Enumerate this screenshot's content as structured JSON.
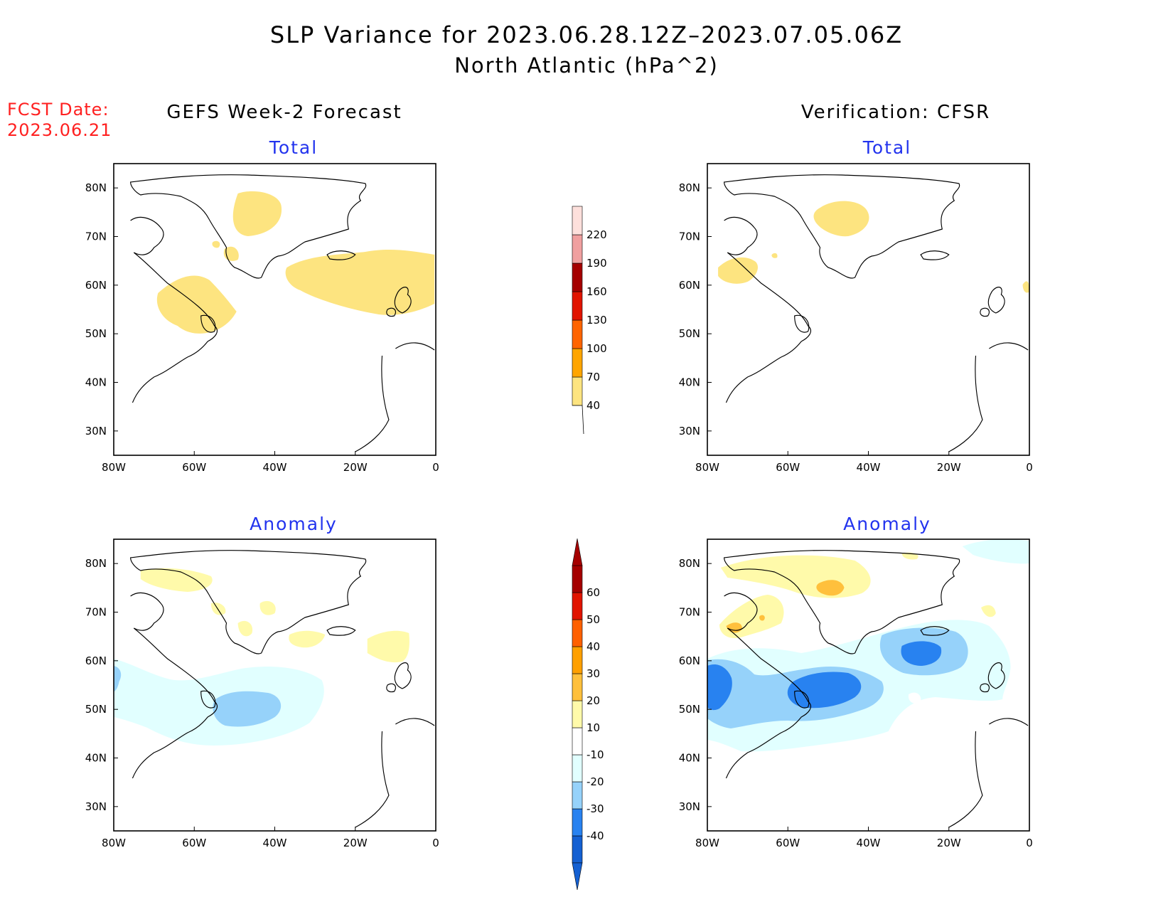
{
  "title": {
    "line1": "SLP Variance for 2023.06.28.12Z–2023.07.05.06Z",
    "line2": "North Atlantic (hPa^2)"
  },
  "forecast_date": {
    "label": "FCST Date:",
    "value": "2023.06.21"
  },
  "columns": {
    "left": "GEFS Week-2 Forecast",
    "right": "Verification: CFSR"
  },
  "panel_titles": {
    "total": "Total",
    "anomaly": "Anomaly"
  },
  "axes": {
    "lat_labels": [
      "80N",
      "70N",
      "60N",
      "50N",
      "40N",
      "30N"
    ],
    "lon_labels": [
      "80W",
      "60W",
      "40W",
      "20W",
      "0"
    ]
  },
  "colorbar_total": {
    "levels": [
      "40",
      "70",
      "100",
      "130",
      "160",
      "190",
      "220"
    ],
    "colors": [
      "#fde480",
      "#ffa500",
      "#ff6400",
      "#e11400",
      "#a50000",
      "#f0a0a0",
      "#fde0dc"
    ]
  },
  "colorbar_anomaly": {
    "levels": [
      "-40",
      "-30",
      "-20",
      "-10",
      "10",
      "20",
      "30",
      "40",
      "50",
      "60"
    ],
    "colors": [
      "#1460d2",
      "#2882f0",
      "#96d2fa",
      "#e1ffff",
      "#ffffff",
      "#fffaaa",
      "#ffc03c",
      "#ffa000",
      "#ff6000",
      "#e11400",
      "#a50000"
    ]
  },
  "chart_data": [
    {
      "type": "map",
      "title": "GEFS Week-2 Forecast — Total",
      "lon_range": [
        -80,
        0
      ],
      "lat_range": [
        25,
        85
      ],
      "features": [
        {
          "region": "central Greenland",
          "level": "40-70"
        },
        {
          "region": "Labrador / Davis Strait",
          "level": "40-70"
        },
        {
          "region": "Iceland to British Isles",
          "level": "40-70"
        }
      ]
    },
    {
      "type": "map",
      "title": "Verification: CFSR — Total",
      "lon_range": [
        -80,
        0
      ],
      "lat_range": [
        25,
        85
      ],
      "features": [
        {
          "region": "central Greenland",
          "level": "40-70"
        },
        {
          "region": "Baffin Island / Hudson Strait",
          "level": "40-70"
        }
      ]
    },
    {
      "type": "map",
      "title": "GEFS Week-2 Forecast — Anomaly",
      "lon_range": [
        -80,
        0
      ],
      "lat_range": [
        25,
        85
      ],
      "features": [
        {
          "region": "NW Greenland / Baffin Bay",
          "level": "10-20"
        },
        {
          "region": "S Greenland",
          "level": "10-20"
        },
        {
          "region": "Iceland / Norwegian Sea",
          "level": "10-20"
        },
        {
          "region": "Newfoundland to mid-Atlantic",
          "level": "-10 to -20"
        },
        {
          "region": "south of Greenland",
          "level": "-20 to -30"
        }
      ]
    },
    {
      "type": "map",
      "title": "Verification: CFSR — Anomaly",
      "lon_range": [
        -80,
        0
      ],
      "lat_range": [
        25,
        85
      ],
      "features": [
        {
          "region": "central Greenland",
          "level": "10-30"
        },
        {
          "region": "Baffin Island",
          "level": "10-30"
        },
        {
          "region": "Labrador / Newfoundland",
          "level": "-20 to -40"
        },
        {
          "region": "mid-Atlantic 50N",
          "level": "-30 to -40"
        },
        {
          "region": "south of Iceland",
          "level": "-30 to -40"
        }
      ]
    }
  ]
}
